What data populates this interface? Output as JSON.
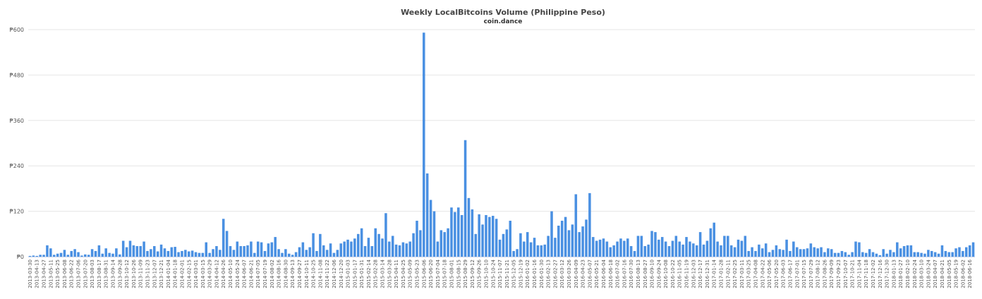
{
  "chart_data": {
    "type": "bar",
    "title": "Weekly LocalBitcoins Volume (Philippine Peso)",
    "subtitle": "coin.dance",
    "xlabel": "",
    "ylabel": "",
    "currency_symbol": "₱",
    "ylim": [
      0,
      600
    ],
    "yticks": [
      0,
      120,
      240,
      360,
      480,
      600
    ],
    "grid": true,
    "legend": "none",
    "bar_color": "#4a90e2",
    "start_date": "2013-03-30",
    "interval_days": 7,
    "tick_label_every": 2,
    "values": [
      2,
      3,
      2,
      5,
      5,
      30,
      22,
      5,
      8,
      10,
      18,
      5,
      15,
      20,
      12,
      3,
      6,
      5,
      20,
      15,
      30,
      8,
      22,
      10,
      8,
      22,
      6,
      42,
      25,
      42,
      30,
      28,
      28,
      40,
      15,
      20,
      28,
      14,
      32,
      22,
      15,
      25,
      26,
      12,
      15,
      18,
      14,
      16,
      12,
      10,
      10,
      38,
      10,
      20,
      28,
      18,
      100,
      68,
      28,
      18,
      40,
      28,
      28,
      30,
      40,
      10,
      40,
      38,
      15,
      35,
      38,
      52,
      20,
      10,
      20,
      8,
      5,
      12,
      25,
      38,
      18,
      25,
      62,
      15,
      60,
      30,
      18,
      35,
      10,
      18,
      35,
      40,
      45,
      40,
      48,
      60,
      75,
      28,
      50,
      28,
      75,
      60,
      48,
      115,
      40,
      55,
      32,
      30,
      38,
      35,
      40,
      62,
      95,
      70,
      592,
      220,
      150,
      120,
      40,
      70,
      65,
      75,
      130,
      118,
      130,
      110,
      308,
      155,
      125,
      60,
      112,
      85,
      110,
      105,
      108,
      100,
      45,
      60,
      72,
      95,
      15,
      20,
      62,
      40,
      65,
      38,
      50,
      30,
      30,
      32,
      55,
      120,
      50,
      82,
      95,
      105,
      70,
      85,
      165,
      65,
      80,
      98,
      168,
      52,
      42,
      45,
      48,
      40,
      25,
      30,
      40,
      48,
      42,
      48,
      28,
      15,
      55,
      55,
      28,
      32,
      68,
      65,
      45,
      52,
      40,
      28,
      42,
      55,
      40,
      32,
      52,
      40,
      35,
      30,
      65,
      32,
      42,
      75,
      90,
      40,
      30,
      55,
      55,
      30,
      25,
      45,
      42,
      55,
      15,
      25,
      15,
      32,
      22,
      35,
      12,
      18,
      30,
      20,
      18,
      45,
      15,
      40,
      25,
      20,
      20,
      22,
      35,
      25,
      22,
      25,
      12,
      22,
      20,
      10,
      10,
      15,
      12,
      5,
      12,
      40,
      38,
      12,
      10,
      20,
      12,
      8,
      4,
      20,
      8,
      18,
      12,
      38,
      22,
      28,
      30,
      30,
      12,
      12,
      10,
      8,
      18,
      15,
      12,
      8,
      30,
      15,
      12,
      12,
      22,
      25,
      15,
      25,
      30,
      38
    ]
  }
}
